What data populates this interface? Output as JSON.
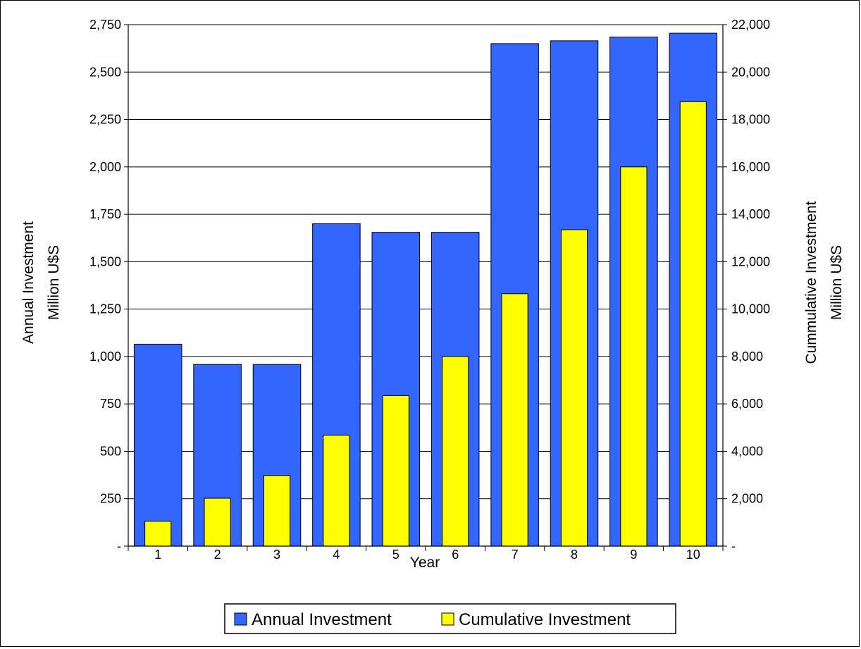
{
  "chart_data": {
    "type": "bar",
    "categories": [
      "1",
      "2",
      "3",
      "4",
      "5",
      "6",
      "7",
      "8",
      "9",
      "10"
    ],
    "xlabel": "Year",
    "ylabel_left": [
      "Annual Investment",
      "Million U$S"
    ],
    "ylabel_right": [
      "Cummulative Investment",
      "Million U$S"
    ],
    "ylim_left": [
      0,
      2750
    ],
    "ylim_right": [
      0,
      22000
    ],
    "yticks_left": [
      "-",
      "250",
      "500",
      "750",
      "1,000",
      "1,250",
      "1,500",
      "1,750",
      "2,000",
      "2,250",
      "2,500",
      "2,750"
    ],
    "yticks_right": [
      "-",
      "2,000",
      "4,000",
      "6,000",
      "8,000",
      "10,000",
      "12,000",
      "14,000",
      "16,000",
      "18,000",
      "20,000",
      "22,000"
    ],
    "grid": "horizontal",
    "legend": "bottom-center",
    "series": [
      {
        "name": "Annual Investment",
        "axis": "left",
        "color": "#3366ff",
        "values": [
          1065,
          958,
          958,
          1700,
          1655,
          1655,
          2650,
          2665,
          2685,
          2705
        ]
      },
      {
        "name": "Cumulative Investment",
        "axis": "right",
        "color": "#ffff00",
        "values": [
          1050,
          2020,
          2980,
          4680,
          6350,
          8000,
          10650,
          13350,
          16000,
          18750
        ]
      }
    ]
  }
}
